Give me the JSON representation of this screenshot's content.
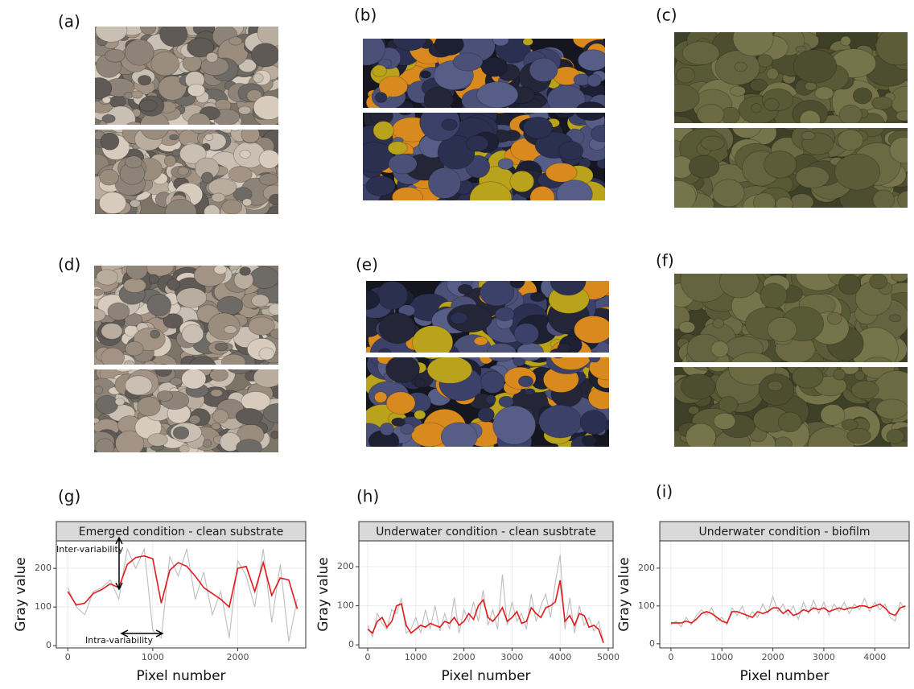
{
  "panel_labels": [
    "(a)",
    "(b)",
    "(c)",
    "(d)",
    "(e)",
    "(f)",
    "(g)",
    "(h)",
    "(i)"
  ],
  "chart_data": [
    {
      "type": "line",
      "title": "Emerged condition - clean substrate",
      "x_label": "Pixel number",
      "y_label": "Gray value",
      "grid": true,
      "xlim": [
        -135,
        2800
      ],
      "ylim": [
        -6,
        271
      ],
      "xticks": [
        0,
        1000,
        2000
      ],
      "yticks": [
        0,
        100,
        200
      ],
      "annotations": [
        "Inter-variability",
        "Intra-variability"
      ],
      "series": [
        {
          "color": "#bdbdbd",
          "x": [
            0,
            100,
            200,
            300,
            400,
            500,
            600,
            700,
            800,
            900,
            1000,
            1100,
            1200,
            1300,
            1400,
            1500,
            1600,
            1700,
            1800,
            1900,
            2000,
            2100,
            2200,
            2300,
            2400,
            2500,
            2600,
            2700
          ],
          "values": [
            150,
            100,
            80,
            140,
            150,
            170,
            120,
            250,
            200,
            250,
            40,
            20,
            230,
            180,
            250,
            120,
            190,
            80,
            140,
            20,
            220,
            180,
            100,
            250,
            60,
            210,
            10,
            120
          ]
        },
        {
          "color": "#e31a1c",
          "x": [
            0,
            100,
            200,
            300,
            400,
            500,
            600,
            700,
            800,
            900,
            1000,
            1100,
            1200,
            1300,
            1400,
            1500,
            1600,
            1700,
            1800,
            1900,
            2000,
            2100,
            2200,
            2300,
            2400,
            2500,
            2600,
            2700
          ],
          "values": [
            140,
            105,
            110,
            135,
            145,
            160,
            150,
            210,
            228,
            232,
            225,
            110,
            195,
            215,
            205,
            180,
            150,
            135,
            120,
            100,
            200,
            205,
            140,
            215,
            130,
            175,
            170,
            95
          ]
        }
      ]
    },
    {
      "type": "line",
      "title": "Underwater condition - clean susbtrate",
      "x_label": "Pixel number",
      "y_label": "Gray value",
      "grid": true,
      "xlim": [
        -184,
        5100
      ],
      "ylim": [
        -8,
        266
      ],
      "xticks": [
        0,
        1000,
        2000,
        3000,
        4000,
        5000
      ],
      "yticks": [
        0,
        100,
        200
      ],
      "series": [
        {
          "color": "#bdbdbd",
          "x": [
            0,
            100,
            200,
            300,
            400,
            500,
            600,
            700,
            800,
            900,
            1000,
            1100,
            1200,
            1300,
            1400,
            1500,
            1600,
            1700,
            1800,
            1900,
            2000,
            2100,
            2200,
            2300,
            2400,
            2500,
            2600,
            2700,
            2800,
            2900,
            3000,
            3100,
            3200,
            3300,
            3400,
            3500,
            3600,
            3700,
            3800,
            3900,
            4000,
            4100,
            4200,
            4300,
            4400,
            4500,
            4600,
            4700,
            4800,
            4900
          ],
          "values": [
            50,
            20,
            80,
            55,
            40,
            90,
            80,
            120,
            30,
            40,
            70,
            30,
            90,
            40,
            100,
            35,
            80,
            40,
            120,
            30,
            90,
            60,
            110,
            60,
            140,
            50,
            90,
            40,
            180,
            50,
            110,
            60,
            80,
            40,
            130,
            60,
            100,
            130,
            70,
            160,
            230,
            40,
            120,
            30,
            100,
            50,
            70,
            35,
            60,
            10
          ]
        },
        {
          "color": "#e31a1c",
          "x": [
            0,
            100,
            200,
            300,
            400,
            500,
            600,
            700,
            800,
            900,
            1000,
            1100,
            1200,
            1300,
            1400,
            1500,
            1600,
            1700,
            1800,
            1900,
            2000,
            2100,
            2200,
            2300,
            2400,
            2500,
            2600,
            2700,
            2800,
            2900,
            3000,
            3100,
            3200,
            3300,
            3400,
            3500,
            3600,
            3700,
            3800,
            3900,
            4000,
            4100,
            4200,
            4300,
            4400,
            4500,
            4600,
            4700,
            4800,
            4900
          ],
          "values": [
            40,
            30,
            60,
            70,
            45,
            60,
            100,
            105,
            50,
            30,
            40,
            50,
            45,
            55,
            50,
            45,
            60,
            55,
            70,
            50,
            60,
            80,
            65,
            100,
            115,
            70,
            60,
            75,
            95,
            60,
            70,
            85,
            55,
            60,
            95,
            80,
            70,
            95,
            100,
            110,
            165,
            60,
            75,
            50,
            80,
            75,
            45,
            50,
            40,
            5
          ]
        }
      ]
    },
    {
      "type": "line",
      "title": "Underwater condition - biofilm",
      "x_label": "Pixel number",
      "y_label": "Gray value",
      "grid": true,
      "xlim": [
        -220,
        4675
      ],
      "ylim": [
        -11,
        272
      ],
      "xticks": [
        0,
        1000,
        2000,
        3000,
        4000
      ],
      "yticks": [
        0,
        100,
        200
      ],
      "series": [
        {
          "color": "#bdbdbd",
          "x": [
            0,
            100,
            200,
            300,
            400,
            500,
            600,
            700,
            800,
            900,
            1000,
            1100,
            1200,
            1300,
            1400,
            1500,
            1600,
            1700,
            1800,
            1900,
            2000,
            2100,
            2200,
            2300,
            2400,
            2500,
            2600,
            2700,
            2800,
            2900,
            3000,
            3100,
            3200,
            3300,
            3400,
            3500,
            3600,
            3700,
            3800,
            3900,
            4000,
            4100,
            4200,
            4300,
            4400,
            4500,
            4600
          ],
          "values": [
            50,
            60,
            45,
            70,
            50,
            75,
            90,
            75,
            95,
            60,
            70,
            50,
            95,
            75,
            100,
            65,
            85,
            70,
            105,
            80,
            125,
            85,
            105,
            75,
            100,
            65,
            110,
            80,
            115,
            80,
            110,
            75,
            105,
            85,
            110,
            80,
            105,
            90,
            120,
            85,
            110,
            90,
            105,
            70,
            60,
            110,
            90
          ]
        },
        {
          "color": "#e31a1c",
          "x": [
            0,
            100,
            200,
            300,
            400,
            500,
            600,
            700,
            800,
            900,
            1000,
            1100,
            1200,
            1300,
            1400,
            1500,
            1600,
            1700,
            1800,
            1900,
            2000,
            2100,
            2200,
            2300,
            2400,
            2500,
            2600,
            2700,
            2800,
            2900,
            3000,
            3100,
            3200,
            3300,
            3400,
            3500,
            3600,
            3700,
            3800,
            3900,
            4000,
            4100,
            4200,
            4300,
            4400,
            4500,
            4600
          ],
          "values": [
            55,
            55,
            55,
            60,
            55,
            65,
            80,
            85,
            80,
            70,
            60,
            55,
            85,
            85,
            80,
            75,
            70,
            85,
            80,
            85,
            95,
            95,
            80,
            90,
            75,
            80,
            90,
            85,
            95,
            90,
            95,
            85,
            90,
            95,
            90,
            95,
            95,
            100,
            100,
            95,
            100,
            105,
            95,
            80,
            75,
            95,
            100
          ]
        }
      ]
    }
  ]
}
